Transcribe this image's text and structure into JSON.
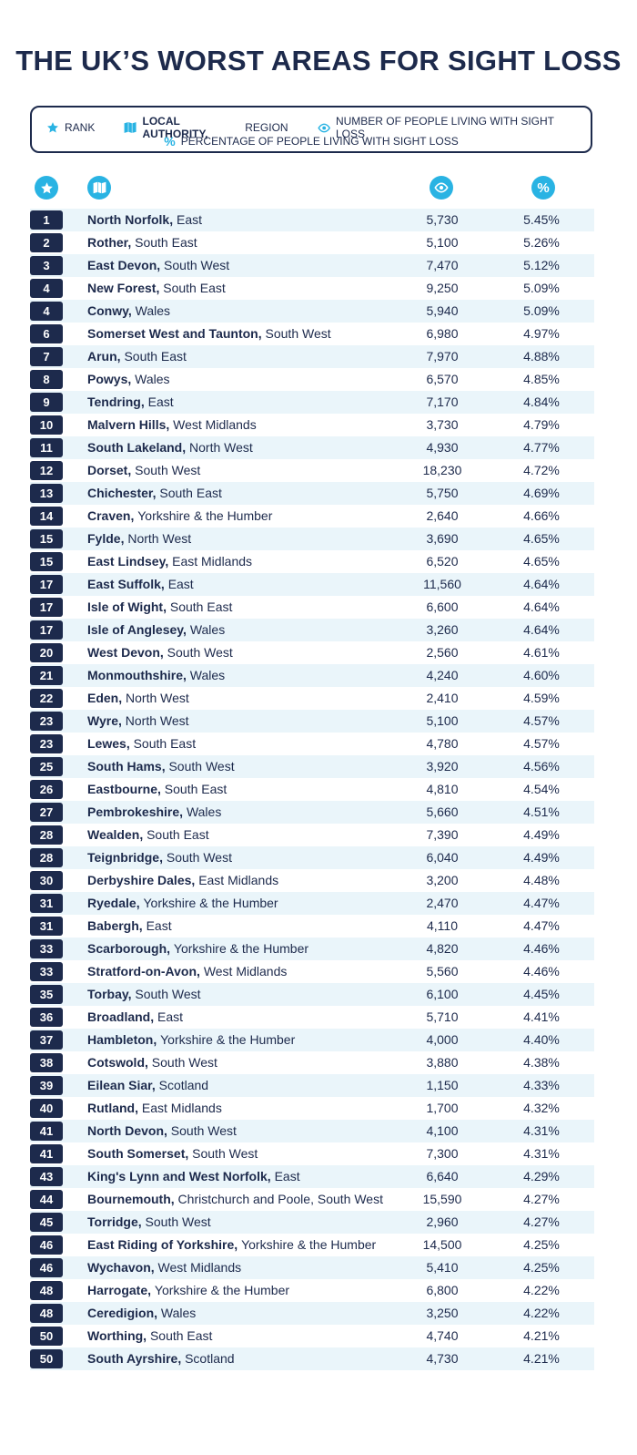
{
  "title": "THE UK’S WORST AREAS FOR SIGHT LOSS",
  "legend": {
    "rank": "RANK",
    "authority_bold": "LOCAL AUTHORITY,",
    "authority_rest": " REGION",
    "number": "NUMBER OF PEOPLE LIVING WITH SIGHT LOSS",
    "percentage": "PERCENTAGE OF PEOPLE LIVING WITH SIGHT LOSS"
  },
  "colors": {
    "navy": "#1d2a4c",
    "accent": "#29b3e3",
    "stripe": "#eaf5fa"
  },
  "icons": {
    "rank": "star-icon",
    "authority": "map-icon",
    "number": "eye-icon",
    "percentage": "percent-icon"
  },
  "rows": [
    {
      "rank": "1",
      "authority": "North Norfolk",
      "region": "East",
      "number": "5,730",
      "percent": "5.45%"
    },
    {
      "rank": "2",
      "authority": "Rother",
      "region": "South East",
      "number": "5,100",
      "percent": "5.26%"
    },
    {
      "rank": "3",
      "authority": "East Devon",
      "region": "South West",
      "number": "7,470",
      "percent": "5.12%"
    },
    {
      "rank": "4",
      "authority": "New Forest",
      "region": "South East",
      "number": "9,250",
      "percent": "5.09%"
    },
    {
      "rank": "4",
      "authority": "Conwy",
      "region": "Wales",
      "number": "5,940",
      "percent": "5.09%"
    },
    {
      "rank": "6",
      "authority": "Somerset West and Taunton",
      "region": "South West",
      "number": "6,980",
      "percent": "4.97%"
    },
    {
      "rank": "7",
      "authority": "Arun",
      "region": "South East",
      "number": "7,970",
      "percent": "4.88%"
    },
    {
      "rank": "8",
      "authority": "Powys",
      "region": "Wales",
      "number": "6,570",
      "percent": "4.85%"
    },
    {
      "rank": "9",
      "authority": "Tendring",
      "region": "East",
      "number": "7,170",
      "percent": "4.84%"
    },
    {
      "rank": "10",
      "authority": "Malvern Hills",
      "region": "West Midlands",
      "number": "3,730",
      "percent": "4.79%"
    },
    {
      "rank": "11",
      "authority": "South Lakeland",
      "region": "North West",
      "number": "4,930",
      "percent": "4.77%"
    },
    {
      "rank": "12",
      "authority": "Dorset",
      "region": "South West",
      "number": "18,230",
      "percent": "4.72%"
    },
    {
      "rank": "13",
      "authority": "Chichester",
      "region": "South East",
      "number": "5,750",
      "percent": "4.69%"
    },
    {
      "rank": "14",
      "authority": "Craven",
      "region": "Yorkshire & the Humber",
      "number": "2,640",
      "percent": "4.66%"
    },
    {
      "rank": "15",
      "authority": "Fylde",
      "region": "North West",
      "number": "3,690",
      "percent": "4.65%"
    },
    {
      "rank": "15",
      "authority": "East Lindsey",
      "region": "East Midlands",
      "number": "6,520",
      "percent": "4.65%"
    },
    {
      "rank": "17",
      "authority": "East Suffolk",
      "region": "East",
      "number": "11,560",
      "percent": "4.64%"
    },
    {
      "rank": "17",
      "authority": "Isle of Wight",
      "region": "South East",
      "number": "6,600",
      "percent": "4.64%"
    },
    {
      "rank": "17",
      "authority": "Isle of Anglesey",
      "region": "Wales",
      "number": "3,260",
      "percent": "4.64%"
    },
    {
      "rank": "20",
      "authority": "West Devon",
      "region": "South West",
      "number": "2,560",
      "percent": "4.61%"
    },
    {
      "rank": "21",
      "authority": "Monmouthshire",
      "region": "Wales",
      "number": "4,240",
      "percent": "4.60%"
    },
    {
      "rank": "22",
      "authority": "Eden",
      "region": "North West",
      "number": "2,410",
      "percent": "4.59%"
    },
    {
      "rank": "23",
      "authority": "Wyre",
      "region": "North West",
      "number": "5,100",
      "percent": "4.57%"
    },
    {
      "rank": "23",
      "authority": "Lewes",
      "region": "South East",
      "number": "4,780",
      "percent": "4.57%"
    },
    {
      "rank": "25",
      "authority": "South Hams",
      "region": "South West",
      "number": "3,920",
      "percent": "4.56%"
    },
    {
      "rank": "26",
      "authority": "Eastbourne",
      "region": "South East",
      "number": "4,810",
      "percent": "4.54%"
    },
    {
      "rank": "27",
      "authority": "Pembrokeshire",
      "region": "Wales",
      "number": "5,660",
      "percent": "4.51%"
    },
    {
      "rank": "28",
      "authority": "Wealden",
      "region": "South East",
      "number": "7,390",
      "percent": "4.49%"
    },
    {
      "rank": "28",
      "authority": "Teignbridge",
      "region": "South West",
      "number": "6,040",
      "percent": "4.49%"
    },
    {
      "rank": "30",
      "authority": "Derbyshire Dales",
      "region": "East Midlands",
      "number": "3,200",
      "percent": "4.48%"
    },
    {
      "rank": "31",
      "authority": "Ryedale",
      "region": "Yorkshire & the Humber",
      "number": "2,470",
      "percent": "4.47%"
    },
    {
      "rank": "31",
      "authority": "Babergh",
      "region": "East",
      "number": "4,110",
      "percent": "4.47%"
    },
    {
      "rank": "33",
      "authority": "Scarborough",
      "region": "Yorkshire & the Humber",
      "number": "4,820",
      "percent": "4.46%"
    },
    {
      "rank": "33",
      "authority": "Stratford-on-Avon",
      "region": "West Midlands",
      "number": "5,560",
      "percent": "4.46%"
    },
    {
      "rank": "35",
      "authority": "Torbay",
      "region": "South West",
      "number": "6,100",
      "percent": "4.45%"
    },
    {
      "rank": "36",
      "authority": "Broadland",
      "region": "East",
      "number": "5,710",
      "percent": "4.41%"
    },
    {
      "rank": "37",
      "authority": "Hambleton",
      "region": "Yorkshire & the Humber",
      "number": "4,000",
      "percent": "4.40%"
    },
    {
      "rank": "38",
      "authority": "Cotswold",
      "region": "South West",
      "number": "3,880",
      "percent": "4.38%"
    },
    {
      "rank": "39",
      "authority": "Eilean Siar",
      "region": "Scotland",
      "number": "1,150",
      "percent": "4.33%"
    },
    {
      "rank": "40",
      "authority": "Rutland",
      "region": "East Midlands",
      "number": "1,700",
      "percent": "4.32%"
    },
    {
      "rank": "41",
      "authority": "North Devon",
      "region": "South West",
      "number": "4,100",
      "percent": "4.31%"
    },
    {
      "rank": "41",
      "authority": "South Somerset",
      "region": "South West",
      "number": "7,300",
      "percent": "4.31%"
    },
    {
      "rank": "43",
      "authority": "King's Lynn and West Norfolk",
      "region": "East",
      "number": "6,640",
      "percent": "4.29%"
    },
    {
      "rank": "44",
      "authority": "Bournemouth",
      "region": "Christchurch and Poole, South West",
      "number": "15,590",
      "percent": "4.27%"
    },
    {
      "rank": "45",
      "authority": "Torridge",
      "region": "South West",
      "number": "2,960",
      "percent": "4.27%"
    },
    {
      "rank": "46",
      "authority": "East Riding of Yorkshire",
      "region": "Yorkshire & the Humber",
      "number": "14,500",
      "percent": "4.25%"
    },
    {
      "rank": "46",
      "authority": "Wychavon",
      "region": "West Midlands",
      "number": "5,410",
      "percent": "4.25%"
    },
    {
      "rank": "48",
      "authority": "Harrogate",
      "region": "Yorkshire & the Humber",
      "number": "6,800",
      "percent": "4.22%"
    },
    {
      "rank": "48",
      "authority": "Ceredigion",
      "region": "Wales",
      "number": "3,250",
      "percent": "4.22%"
    },
    {
      "rank": "50",
      "authority": "Worthing",
      "region": "South East",
      "number": "4,740",
      "percent": "4.21%"
    },
    {
      "rank": "50",
      "authority": "South Ayrshire",
      "region": "Scotland",
      "number": "4,730",
      "percent": "4.21%"
    }
  ]
}
